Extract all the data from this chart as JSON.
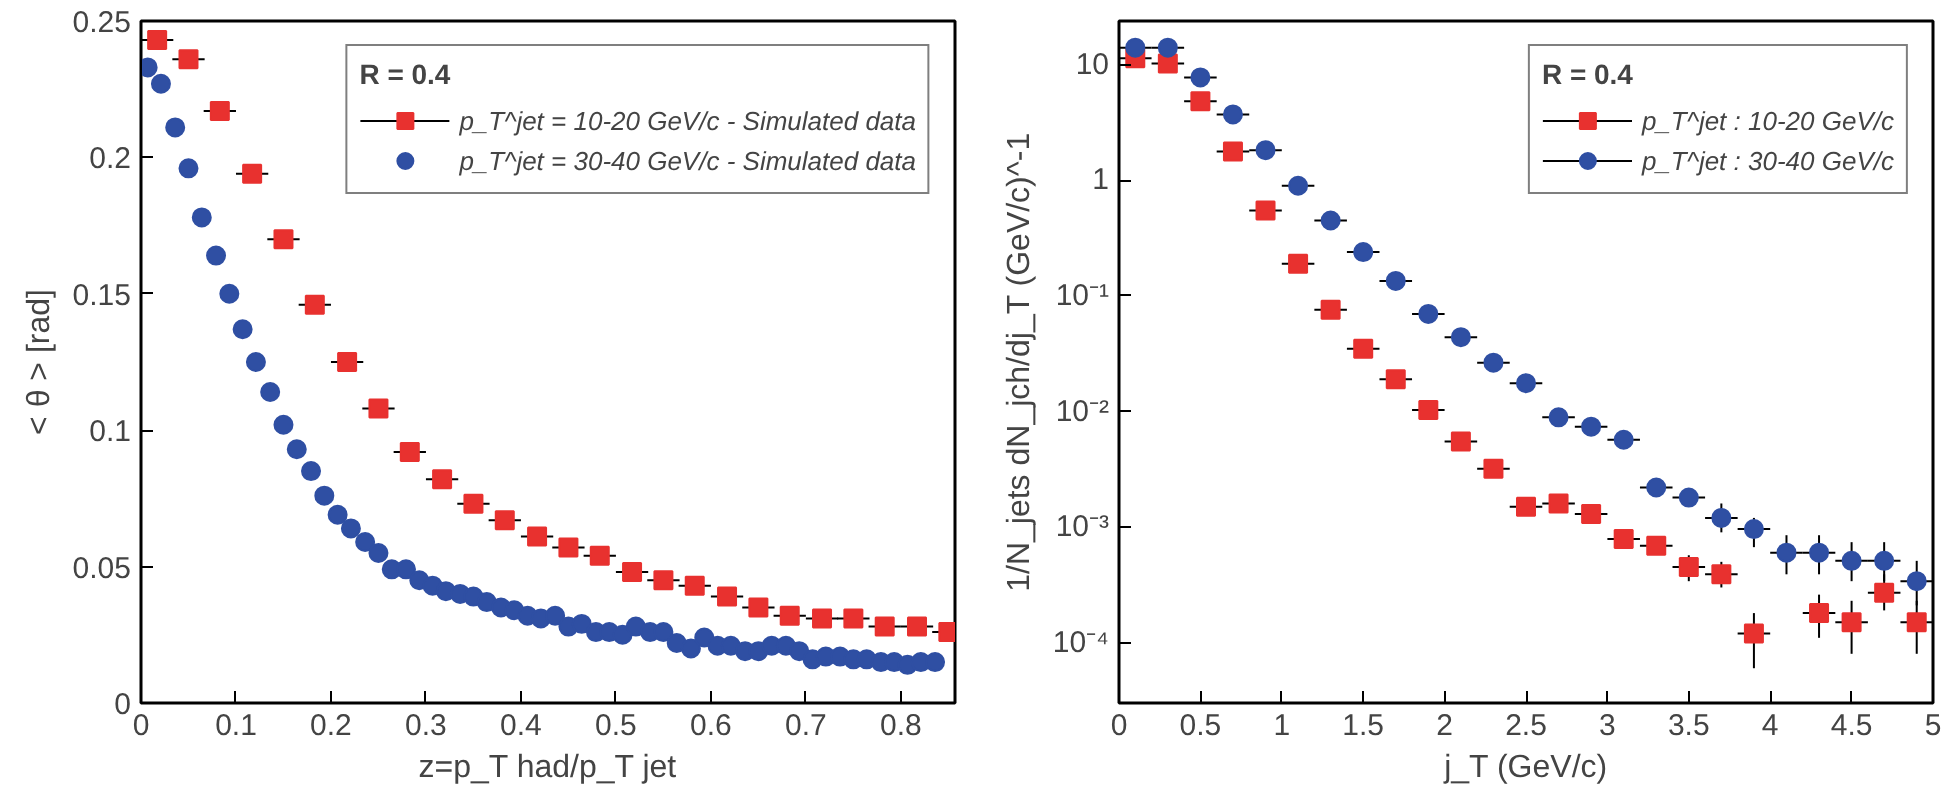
{
  "chart_data": [
    {
      "type": "scatter",
      "xlabel": "z=p_T had/p_T jet",
      "ylabel": "< θ > [rad]",
      "legend_title": "R = 0.4",
      "legend": "top right",
      "grid": false,
      "xlim": [
        0,
        0.857
      ],
      "xticks": [
        0,
        0.1,
        0.2,
        0.3,
        0.4,
        0.5,
        0.6,
        0.7,
        0.8
      ],
      "ylim": [
        0,
        0.25
      ],
      "yticks": [
        0,
        0.05,
        0.1,
        0.15,
        0.2,
        0.25
      ],
      "series": [
        {
          "name": "p_T^jet = 10-20 GeV/c - Simulated data",
          "color": "#e8312f",
          "marker": "square",
          "x": [
            0.017,
            0.05,
            0.083,
            0.117,
            0.15,
            0.183,
            0.217,
            0.25,
            0.283,
            0.317,
            0.35,
            0.383,
            0.417,
            0.45,
            0.483,
            0.517,
            0.55,
            0.583,
            0.617,
            0.65,
            0.683,
            0.717,
            0.75,
            0.783,
            0.817,
            0.85
          ],
          "values": [
            0.243,
            0.236,
            0.217,
            0.194,
            0.17,
            0.146,
            0.125,
            0.108,
            0.092,
            0.082,
            0.073,
            0.067,
            0.061,
            0.057,
            0.054,
            0.048,
            0.045,
            0.043,
            0.039,
            0.035,
            0.032,
            0.031,
            0.031,
            0.028,
            0.028,
            0.026
          ],
          "xerrors": [
            0.017,
            0.017,
            0.017,
            0.017,
            0.017,
            0.017,
            0.017,
            0.017,
            0.017,
            0.017,
            0.017,
            0.017,
            0.017,
            0.017,
            0.017,
            0.017,
            0.017,
            0.017,
            0.017,
            0.017,
            0.017,
            0.017,
            0.017,
            0.017,
            0.017,
            0.017
          ]
        },
        {
          "name": "p_T^jet = 30-40 GeV/c - Simulated data",
          "color": "#2f4fa3",
          "marker": "circle",
          "x": [
            0.007,
            0.021,
            0.036,
            0.05,
            0.064,
            0.079,
            0.093,
            0.107,
            0.121,
            0.136,
            0.15,
            0.164,
            0.179,
            0.193,
            0.207,
            0.221,
            0.236,
            0.25,
            0.264,
            0.279,
            0.293,
            0.307,
            0.321,
            0.336,
            0.35,
            0.364,
            0.379,
            0.393,
            0.407,
            0.421,
            0.436,
            0.45,
            0.464,
            0.479,
            0.493,
            0.507,
            0.521,
            0.536,
            0.55,
            0.564,
            0.579,
            0.593,
            0.607,
            0.621,
            0.636,
            0.65,
            0.664,
            0.679,
            0.693,
            0.707,
            0.721,
            0.736,
            0.75,
            0.764,
            0.779,
            0.793,
            0.807,
            0.821,
            0.836
          ],
          "values": [
            0.233,
            0.227,
            0.211,
            0.196,
            0.178,
            0.164,
            0.15,
            0.137,
            0.125,
            0.114,
            0.102,
            0.093,
            0.085,
            0.076,
            0.069,
            0.064,
            0.059,
            0.055,
            0.049,
            0.049,
            0.045,
            0.043,
            0.041,
            0.04,
            0.039,
            0.037,
            0.035,
            0.034,
            0.032,
            0.031,
            0.032,
            0.028,
            0.029,
            0.026,
            0.026,
            0.025,
            0.028,
            0.026,
            0.026,
            0.022,
            0.02,
            0.024,
            0.021,
            0.021,
            0.019,
            0.019,
            0.021,
            0.021,
            0.019,
            0.016,
            0.017,
            0.017,
            0.016,
            0.016,
            0.015,
            0.015,
            0.014,
            0.015,
            0.015
          ]
        }
      ]
    },
    {
      "type": "scatter",
      "xlabel": "j_T (GeV/c)",
      "ylabel": "1/N_jets dN_jch/dj_T (GeV/c)^-1",
      "legend_title": "R = 0.4",
      "legend": "top right",
      "grid": false,
      "log": "y",
      "xlim": [
        0,
        5
      ],
      "xticks": [
        0,
        0.5,
        1,
        1.5,
        2,
        2.5,
        3,
        3.5,
        4,
        4.5,
        5
      ],
      "ylim": [
        3e-05,
        24
      ],
      "yticks": [
        {
          "value": 0.0001,
          "label": "10⁻⁴"
        },
        {
          "value": 0.001,
          "label": "10⁻³"
        },
        {
          "value": 0.01,
          "label": "10⁻²"
        },
        {
          "value": 0.1,
          "label": "10⁻¹"
        },
        1,
        10
      ],
      "x": [
        0.1,
        0.3,
        0.5,
        0.7,
        0.9,
        1.1,
        1.3,
        1.5,
        1.7,
        1.9,
        2.1,
        2.3,
        2.5,
        2.7,
        2.9,
        3.1,
        3.3,
        3.5,
        3.7,
        3.9,
        4.1,
        4.3,
        4.5,
        4.7,
        4.9
      ],
      "series": [
        {
          "name": "p_T^jet : 10-20 GeV/c",
          "color": "#e8312f",
          "marker": "square",
          "values": [
            11.4,
            10.3,
            4.85,
            1.78,
            0.55,
            0.19,
            0.076,
            0.035,
            0.019,
            0.0103,
            0.0055,
            0.0032,
            0.0015,
            0.0016,
            0.0013,
            0.00079,
            0.00069,
            0.00045,
            0.00039,
            0.00012,
            null,
            0.00018,
            0.00015,
            0.00027,
            0.00015
          ],
          "xerrors": [
            0.1,
            0.1,
            0.1,
            0.1,
            0.1,
            0.1,
            0.1,
            0.1,
            0.1,
            0.1,
            0.1,
            0.1,
            0.1,
            0.1,
            0.1,
            0.1,
            0.1,
            0.1,
            0.1,
            0.1,
            null,
            0.1,
            0.1,
            0.1,
            0.1
          ],
          "errors": [
            null,
            null,
            null,
            null,
            null,
            null,
            null,
            null,
            null,
            null,
            null,
            null,
            null,
            null,
            null,
            null,
            null,
            [
              0.00034,
              0.00057
            ],
            [
              0.0003,
              0.0005
            ],
            [
              6e-05,
              0.00018
            ],
            null,
            [
              0.00011,
              0.00026
            ],
            [
              8e-05,
              0.00023
            ],
            [
              0.00019,
              0.00039
            ],
            [
              8e-05,
              0.00023
            ]
          ]
        },
        {
          "name": "p_T^jet : 30-40 GeV/c",
          "color": "#2f4fa3",
          "marker": "circle",
          "values": [
            14.1,
            14.1,
            7.8,
            3.73,
            1.83,
            0.9,
            0.45,
            0.24,
            0.135,
            0.07,
            0.044,
            0.0265,
            0.0176,
            0.0089,
            0.0074,
            0.0057,
            0.0022,
            0.0018,
            0.0012,
            0.00096,
            0.0006,
            0.0006,
            0.00051,
            0.00051,
            0.00034
          ],
          "xerrors": [
            0.1,
            0.1,
            0.1,
            0.1,
            0.1,
            0.1,
            0.1,
            0.1,
            0.1,
            0.1,
            0.1,
            0.1,
            0.1,
            0.1,
            0.1,
            0.1,
            0.1,
            0.1,
            0.1,
            0.1,
            0.1,
            0.1,
            0.1,
            0.1,
            0.1
          ],
          "errors": [
            null,
            null,
            null,
            null,
            null,
            null,
            null,
            null,
            null,
            null,
            null,
            null,
            null,
            null,
            null,
            null,
            null,
            null,
            [
              0.0009,
              0.0016
            ],
            [
              0.00067,
              0.0012
            ],
            [
              0.00039,
              0.00085
            ],
            [
              0.00039,
              0.00085
            ],
            [
              0.00034,
              0.00074
            ],
            [
              0.00034,
              0.00074
            ],
            [
              0.00021,
              0.00051
            ]
          ]
        }
      ]
    }
  ]
}
